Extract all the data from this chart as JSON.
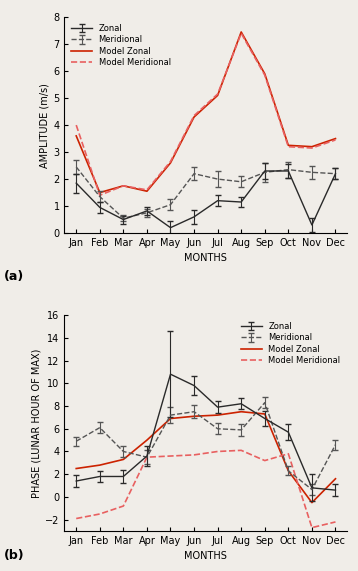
{
  "months": [
    "Jan",
    "Feb",
    "Mar",
    "Apr",
    "May",
    "Jun",
    "Jul",
    "Aug",
    "Sep",
    "Oct",
    "Nov",
    "Dec"
  ],
  "x": [
    1,
    2,
    3,
    4,
    5,
    6,
    7,
    8,
    9,
    10,
    11,
    12
  ],
  "amp_zonal": [
    1.85,
    0.95,
    0.5,
    0.82,
    0.2,
    0.6,
    1.2,
    1.15,
    2.3,
    2.3,
    0.3,
    2.2
  ],
  "amp_zonal_err": [
    0.35,
    0.2,
    0.15,
    0.15,
    0.25,
    0.25,
    0.2,
    0.2,
    0.3,
    0.25,
    0.25,
    0.2
  ],
  "amp_merid": [
    2.45,
    1.35,
    0.55,
    0.75,
    1.05,
    2.2,
    2.0,
    1.9,
    2.25,
    2.35,
    2.25,
    2.2
  ],
  "amp_merid_err": [
    0.25,
    0.2,
    0.12,
    0.15,
    0.2,
    0.25,
    0.3,
    0.2,
    0.35,
    0.3,
    0.25,
    0.2
  ],
  "amp_model_zonal": [
    3.6,
    1.5,
    1.75,
    1.55,
    2.6,
    4.3,
    5.1,
    7.45,
    5.9,
    3.25,
    3.2,
    3.5
  ],
  "amp_model_merid": [
    4.0,
    1.4,
    1.75,
    1.6,
    2.65,
    4.35,
    5.15,
    7.4,
    5.85,
    3.2,
    3.15,
    3.45
  ],
  "phase_zonal": [
    1.4,
    1.8,
    1.8,
    3.6,
    10.8,
    9.8,
    7.9,
    8.2,
    6.9,
    5.7,
    0.8,
    0.6
  ],
  "phase_zonal_err": [
    0.5,
    0.5,
    0.6,
    0.9,
    3.8,
    0.8,
    0.5,
    0.5,
    0.7,
    0.7,
    1.2,
    0.5
  ],
  "phase_merid": [
    4.9,
    6.1,
    4.0,
    3.5,
    7.2,
    7.5,
    6.0,
    5.9,
    8.3,
    2.3,
    0.65,
    4.6
  ],
  "phase_merid_err": [
    0.4,
    0.5,
    0.5,
    0.6,
    0.7,
    0.55,
    0.5,
    0.5,
    0.5,
    0.4,
    0.5,
    0.45
  ],
  "phase_model_zonal": [
    2.5,
    2.8,
    3.3,
    5.0,
    6.9,
    7.1,
    7.2,
    7.5,
    7.3,
    2.3,
    -0.5,
    1.6
  ],
  "phase_model_merid": [
    -1.9,
    -1.5,
    -0.8,
    3.5,
    3.6,
    3.7,
    4.0,
    4.1,
    3.2,
    3.8,
    -2.7,
    -2.2
  ],
  "color_black": "#2a2a2a",
  "color_darkgray": "#555555",
  "color_red": "#cc2200",
  "color_lightred": "#e86060",
  "background": "#f0ede8"
}
